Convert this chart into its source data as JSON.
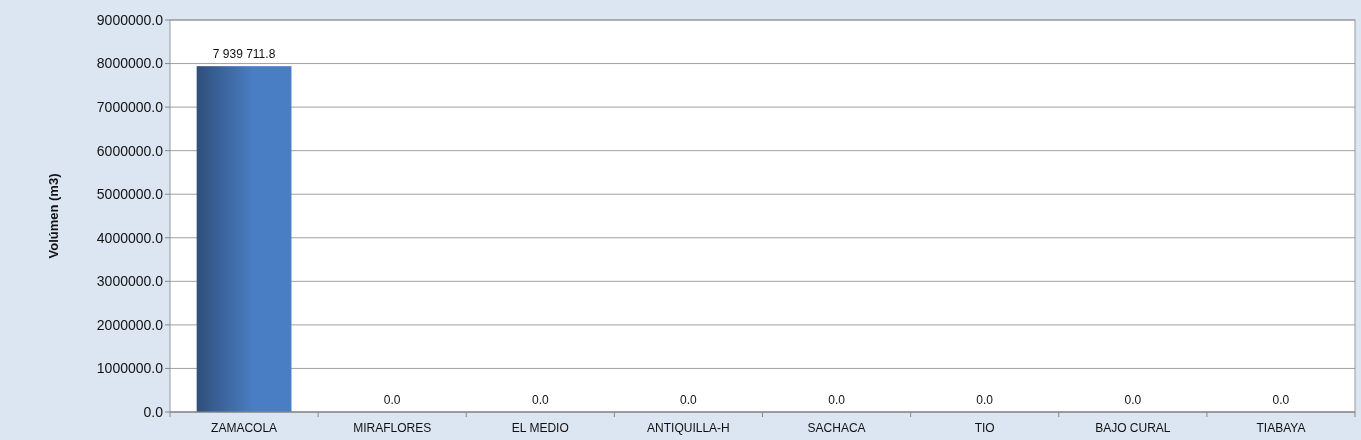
{
  "chart_data": {
    "type": "bar",
    "ylabel": "Volúmen (m3)",
    "categories": [
      "ZAMACOLA",
      "MIRAFLORES",
      "EL MEDIO",
      "ANTIQUILLA-H",
      "SACHACA",
      "TIO",
      "BAJO CURAL",
      "TIABAYA"
    ],
    "values": [
      7939711.8,
      0,
      0,
      0,
      0,
      0,
      0,
      0
    ],
    "value_labels": [
      "7 939 711.8",
      "0.0",
      "0.0",
      "0.0",
      "0.0",
      "0.0",
      "0.0",
      "0.0"
    ],
    "color": "#4a7ec4",
    "ylim": [
      0,
      9000000
    ],
    "yticks": [
      {
        "value": 0,
        "label": "0.0"
      },
      {
        "value": 1000000,
        "label": "1000000.0"
      },
      {
        "value": 2000000,
        "label": "2000000.0"
      },
      {
        "value": 3000000,
        "label": "3000000.0"
      },
      {
        "value": 4000000,
        "label": "4000000.0"
      },
      {
        "value": 5000000,
        "label": "5000000.0"
      },
      {
        "value": 6000000,
        "label": "6000000.0"
      },
      {
        "value": 7000000,
        "label": "7000000.0"
      },
      {
        "value": 8000000,
        "label": "8000000.0"
      },
      {
        "value": 9000000,
        "label": "9000000.0"
      }
    ],
    "grid": "y"
  }
}
